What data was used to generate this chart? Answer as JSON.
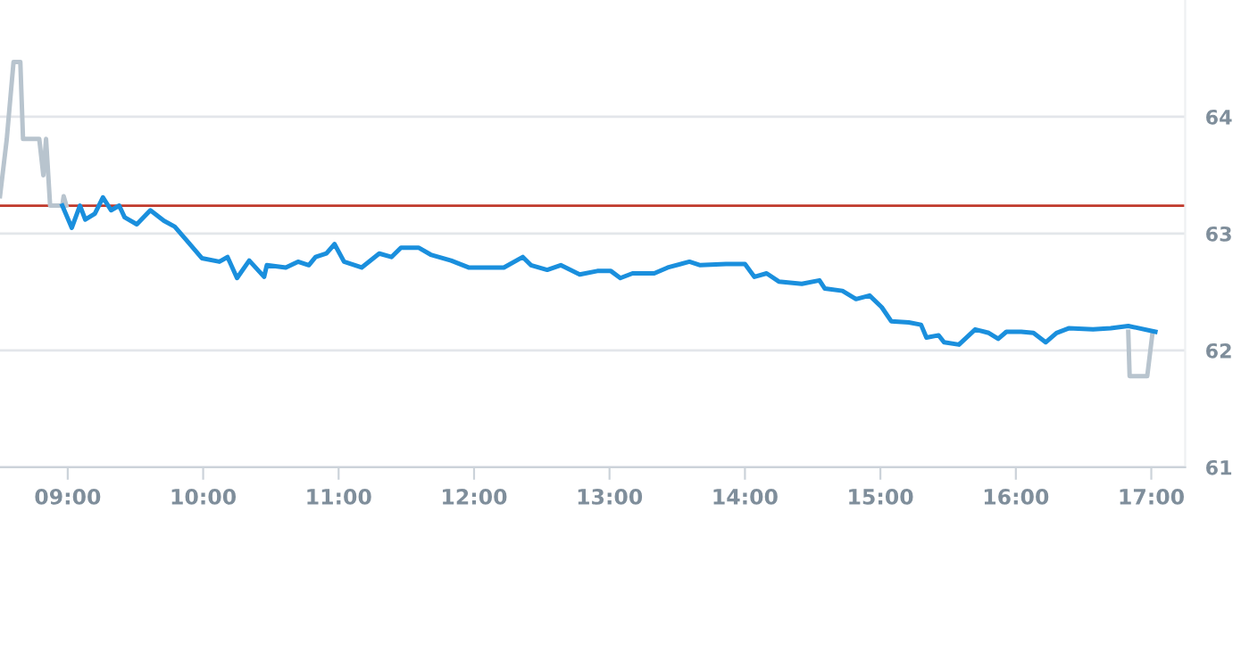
{
  "chart_data": {
    "type": "line",
    "x": [
      8.96,
      9.03,
      9.09,
      9.13,
      9.2,
      9.26,
      9.32,
      9.38,
      9.42,
      9.51,
      9.61,
      9.71,
      9.79,
      9.88,
      9.99,
      10.12,
      10.18,
      10.25,
      10.34,
      10.45,
      10.47,
      10.61,
      10.7,
      10.78,
      10.83,
      10.91,
      10.97,
      11.04,
      11.17,
      11.3,
      11.39,
      11.46,
      11.59,
      11.68,
      11.83,
      11.96,
      12.09,
      12.22,
      12.36,
      12.42,
      12.54,
      12.64,
      12.78,
      12.91,
      13.01,
      13.08,
      13.17,
      13.33,
      13.43,
      13.59,
      13.67,
      13.86,
      14.0,
      14.07,
      14.16,
      14.25,
      14.42,
      14.55,
      14.59,
      14.72,
      14.82,
      14.92,
      15.01,
      15.08,
      15.21,
      15.3,
      15.34,
      15.43,
      15.47,
      15.58,
      15.7,
      15.8,
      15.87,
      15.93,
      16.04,
      16.13,
      16.22,
      16.3,
      16.39,
      16.57,
      16.7,
      16.83,
      17.03
    ],
    "series": [
      {
        "color": "#1a8fdd",
        "values": [
          63.24,
          63.05,
          63.24,
          63.12,
          63.17,
          63.31,
          63.2,
          63.24,
          63.14,
          63.08,
          63.2,
          63.11,
          63.06,
          62.94,
          62.79,
          62.76,
          62.8,
          62.62,
          62.77,
          62.63,
          62.73,
          62.71,
          62.76,
          62.73,
          62.8,
          62.83,
          62.91,
          62.76,
          62.71,
          62.83,
          62.8,
          62.88,
          62.88,
          62.82,
          62.77,
          62.71,
          62.71,
          62.71,
          62.8,
          62.73,
          62.69,
          62.73,
          62.65,
          62.68,
          62.68,
          62.62,
          62.66,
          62.66,
          62.71,
          62.76,
          62.73,
          62.74,
          62.74,
          62.63,
          62.66,
          62.59,
          62.57,
          62.6,
          62.53,
          62.51,
          62.44,
          62.47,
          62.37,
          62.25,
          62.24,
          62.22,
          62.11,
          62.13,
          62.07,
          62.05,
          62.18,
          62.15,
          62.1,
          62.16,
          62.16,
          62.15,
          62.07,
          62.15,
          62.19,
          62.18,
          62.19,
          62.21,
          62.16
        ]
      },
      {
        "color": "#b8c4ce",
        "x": [
          8.5,
          8.55,
          8.6,
          8.65,
          8.67,
          8.79,
          8.82,
          8.84,
          8.87,
          8.96,
          8.97,
          8.99
        ],
        "values": [
          63.32,
          63.81,
          64.47,
          64.47,
          63.81,
          63.81,
          63.5,
          63.81,
          63.24,
          63.24,
          63.32,
          63.24
        ]
      },
      {
        "color": "#b8c4ce",
        "x": [
          16.83,
          16.84,
          16.97,
          17.01
        ],
        "values": [
          62.16,
          61.78,
          61.78,
          62.16
        ]
      }
    ],
    "xlim": [
      8.5,
      17.25
    ],
    "ylim": [
      61,
      65
    ],
    "xticks": [
      {
        "value": 9,
        "label": "09:00"
      },
      {
        "value": 10,
        "label": "10:00"
      },
      {
        "value": 11,
        "label": "11:00"
      },
      {
        "value": 12,
        "label": "12:00"
      },
      {
        "value": 13,
        "label": "13:00"
      },
      {
        "value": 14,
        "label": "14:00"
      },
      {
        "value": 15,
        "label": "15:00"
      },
      {
        "value": 16,
        "label": "16:00"
      },
      {
        "value": 17,
        "label": "17:00"
      }
    ],
    "yticks": [
      61,
      62,
      63,
      64
    ],
    "ref_lines": [
      {
        "axis": "y",
        "value": 63.24,
        "color": "#c0392b"
      }
    ],
    "grid": "y",
    "marker": "none",
    "line_style": "solid"
  }
}
